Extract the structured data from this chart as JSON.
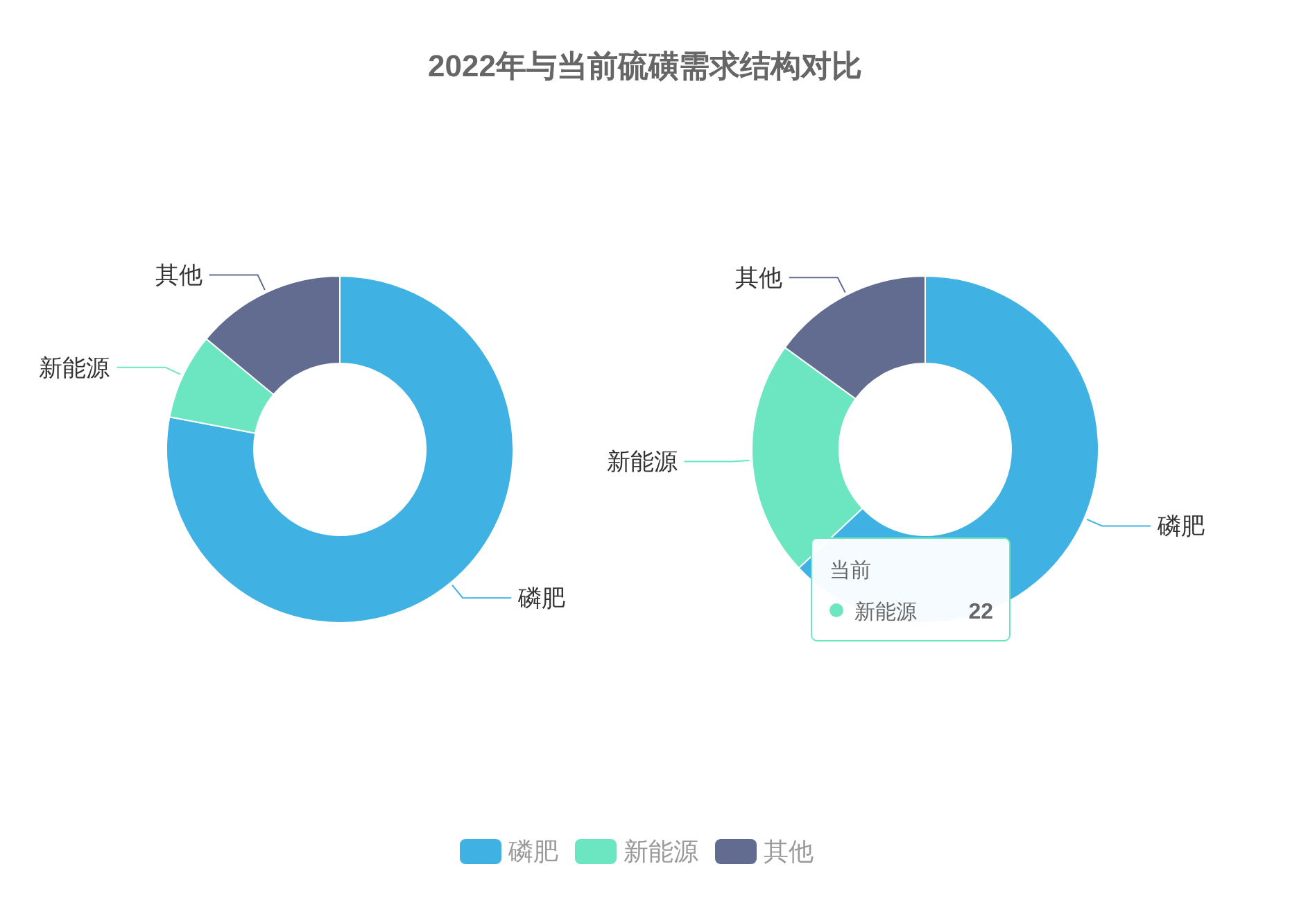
{
  "chart_data": [
    {
      "type": "donut",
      "title": "2022年与当前硫磺需求结构对比",
      "categories": [
        "磷肥",
        "新能源",
        "其他"
      ],
      "values": [
        78,
        8,
        14
      ],
      "colors": [
        "#3fb1e3",
        "#6be6c1",
        "#626c91"
      ],
      "legend": "bottom"
    },
    {
      "type": "donut",
      "categories": [
        "磷肥",
        "新能源",
        "其他"
      ],
      "values": [
        63,
        22,
        15
      ],
      "colors": [
        "#3fb1e3",
        "#6be6c1",
        "#626c91"
      ],
      "annotations": [
        "当前",
        "新能源",
        "22"
      ]
    }
  ]
}
